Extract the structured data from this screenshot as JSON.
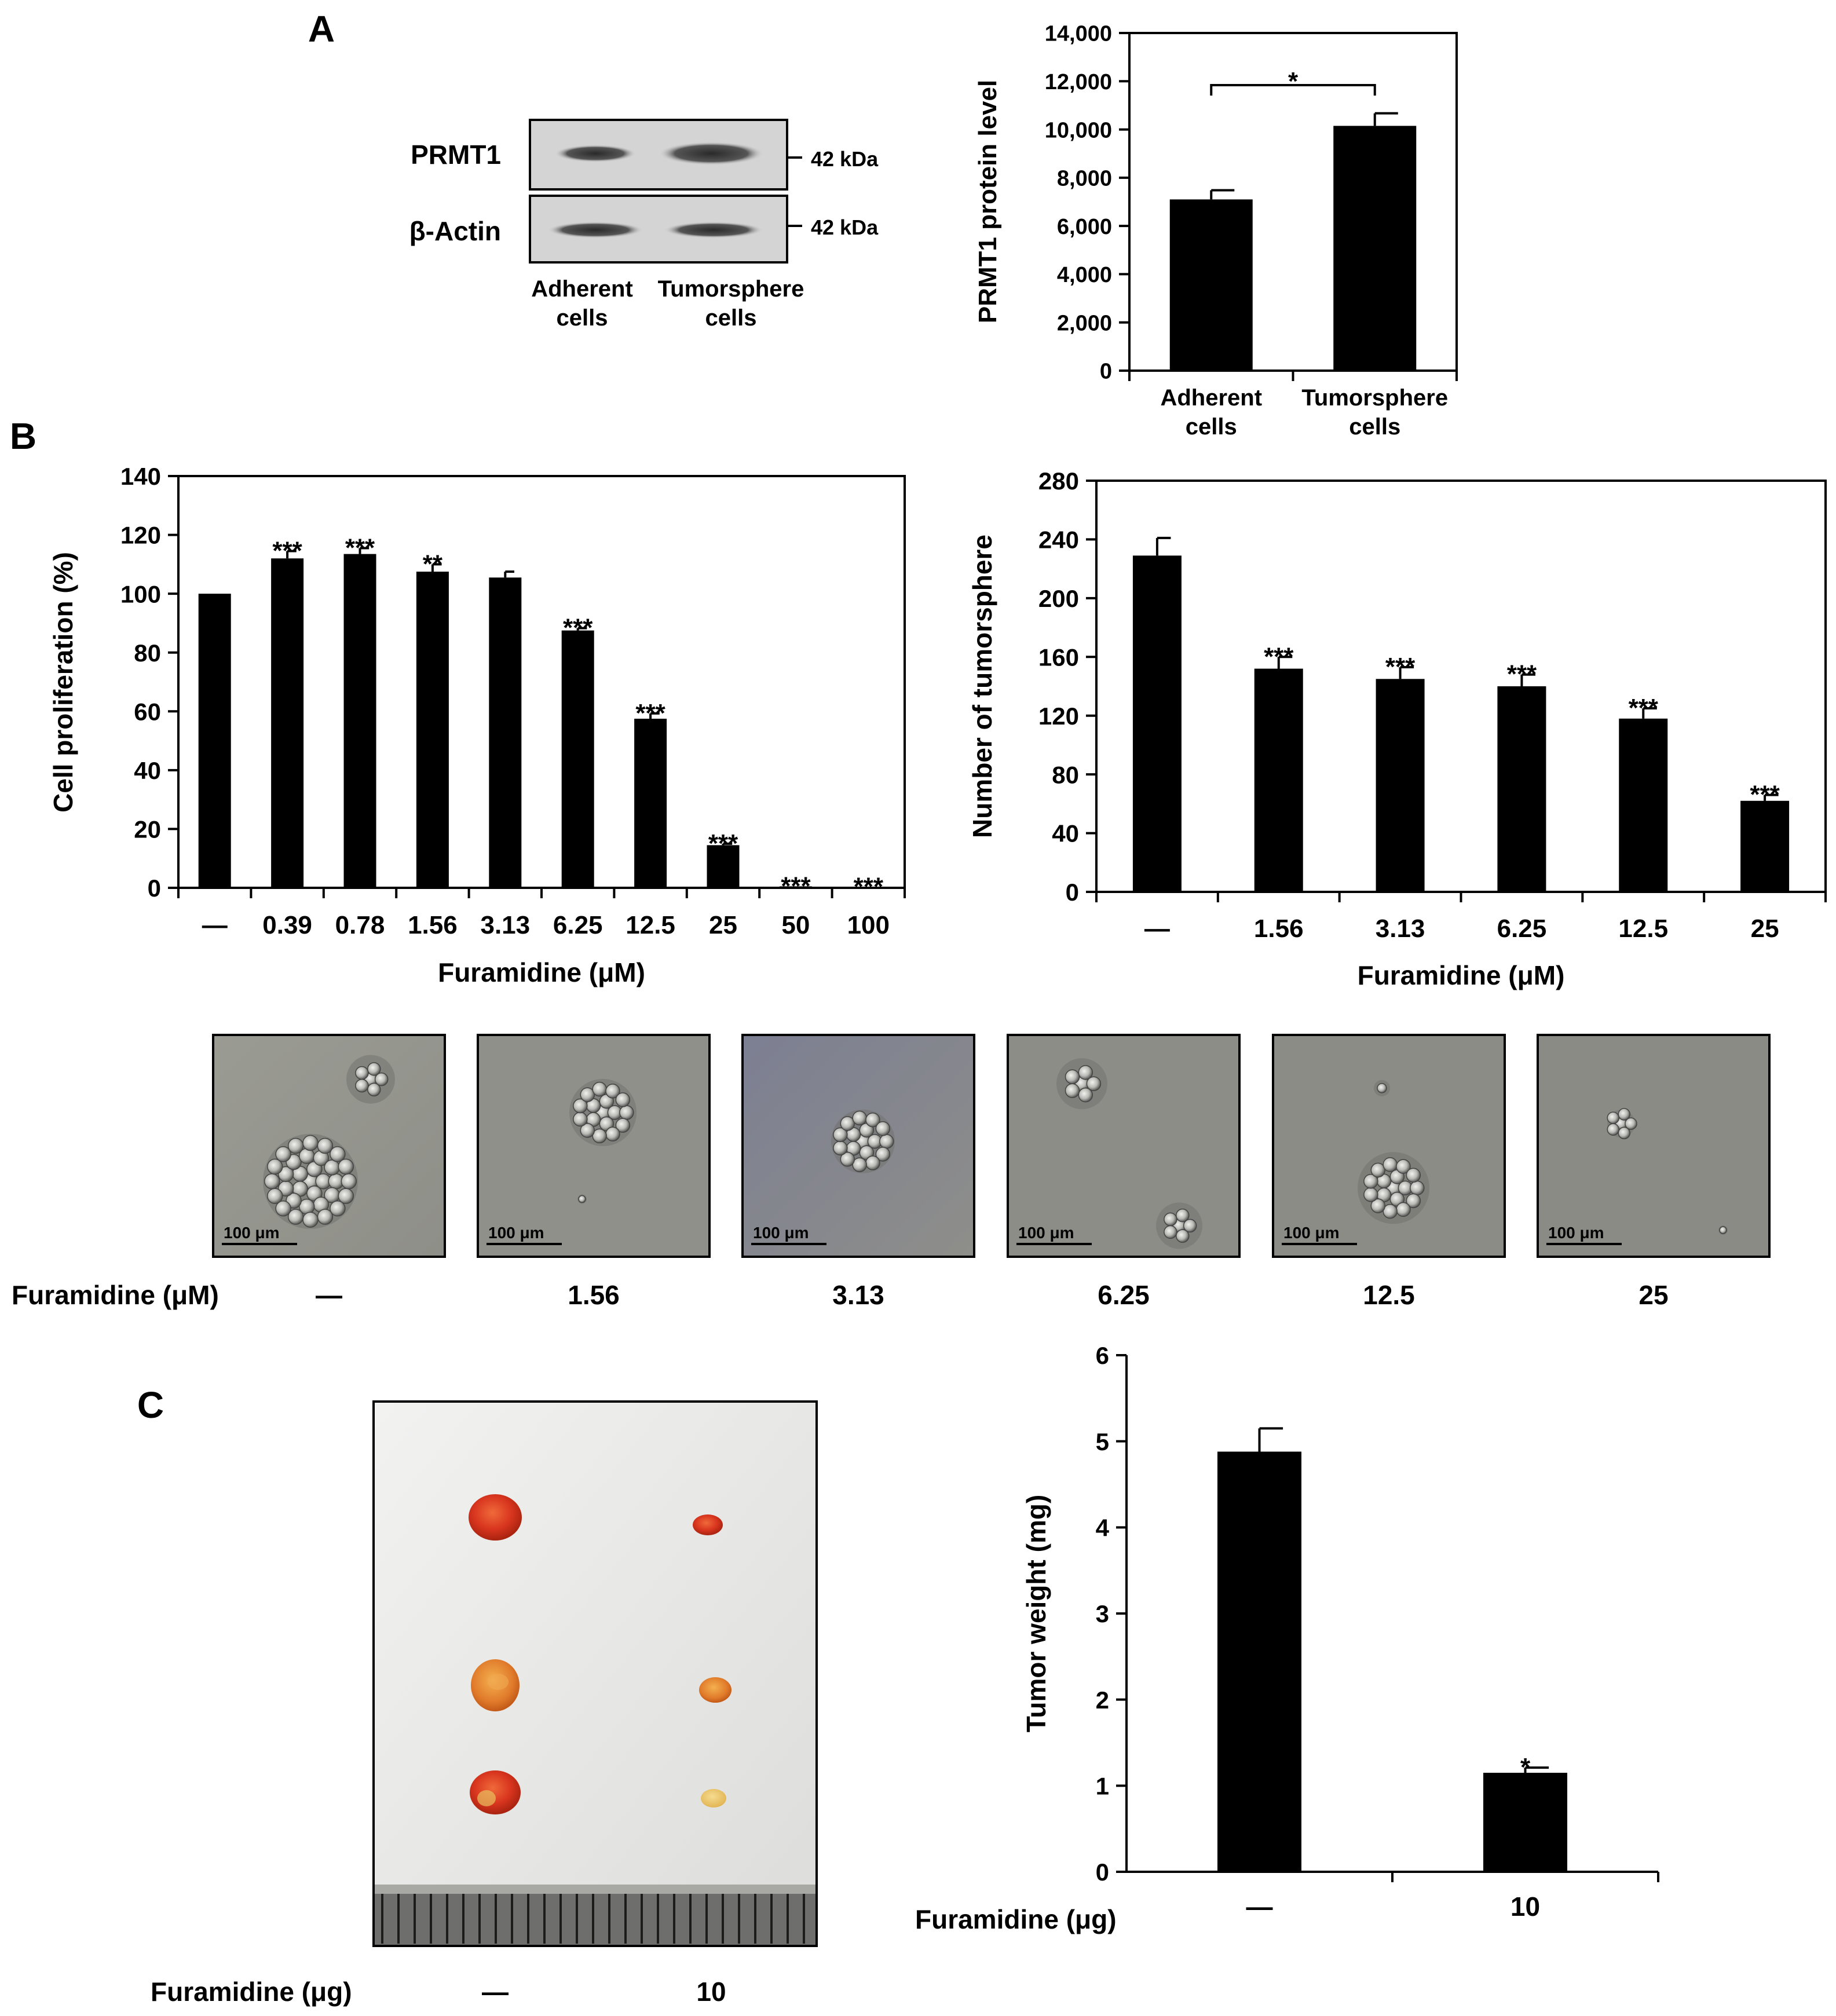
{
  "panels": {
    "A": {
      "letter": "A",
      "blot": {
        "bands": [
          {
            "label": "PRMT1",
            "size": "42 kDa"
          },
          {
            "label": "β-Actin",
            "size": "42 kDa"
          }
        ],
        "lanes": [
          {
            "line1": "Adherent",
            "line2": "cells"
          },
          {
            "line1": "Tumorsphere",
            "line2": "cells"
          }
        ]
      }
    },
    "B": {
      "letter": "B",
      "images": {
        "axis_label": "Furamidine (μM)",
        "scalebar": "100 μm",
        "labels": [
          "—",
          "1.56",
          "3.13",
          "6.25",
          "12.5",
          "25"
        ]
      }
    },
    "C": {
      "letter": "C",
      "photo": {
        "axis_label": "Furamidine (μg)",
        "labels": [
          "—",
          "10"
        ]
      }
    }
  },
  "chart_data": [
    {
      "id": "prmt1",
      "type": "bar",
      "categories": [
        [
          "Adherent",
          "cells"
        ],
        [
          "Tumorsphere",
          "cells"
        ]
      ],
      "values": [
        7100,
        10150
      ],
      "errors": [
        380,
        520
      ],
      "ylabel": "PRMT1 protein level",
      "xlabel": "",
      "ylim": [
        0,
        14000
      ],
      "yticks": [
        "0",
        "2,000",
        "4,000",
        "6,000",
        "8,000",
        "10,000",
        "12,000",
        "14,000"
      ],
      "significance": [
        {
          "from": 0,
          "to": 1,
          "label": "*"
        }
      ]
    },
    {
      "id": "proliferation",
      "type": "bar",
      "categories": [
        "—",
        "0.39",
        "0.78",
        "1.56",
        "3.13",
        "6.25",
        "12.5",
        "25",
        "50",
        "100"
      ],
      "values": [
        100,
        112,
        113.5,
        107.5,
        105.5,
        87.5,
        57.5,
        14.5,
        0.5,
        0.3
      ],
      "errors": [
        0,
        2.5,
        2,
        2.5,
        2,
        0.8,
        1.8,
        0.5,
        0,
        0
      ],
      "annotations": [
        "",
        "***",
        "***",
        "**",
        "",
        "***",
        "***",
        "***",
        "***",
        "***"
      ],
      "ylabel": "Cell proliferation (%)",
      "xlabel": "Furamidine (μM)",
      "ylim": [
        0,
        140
      ],
      "yticks": [
        "0",
        "20",
        "40",
        "60",
        "80",
        "100",
        "120",
        "140"
      ]
    },
    {
      "id": "tumorsphere",
      "type": "bar",
      "categories": [
        "—",
        "1.56",
        "3.13",
        "6.25",
        "12.5",
        "25"
      ],
      "values": [
        229,
        152,
        145,
        140,
        118,
        62
      ],
      "errors": [
        12,
        8,
        8,
        8,
        7,
        4
      ],
      "annotations": [
        "",
        "***",
        "***",
        "***",
        "***",
        "***"
      ],
      "ylabel": "Number of tumorsphere",
      "xlabel": "Furamidine (μM)",
      "ylim": [
        0,
        280
      ],
      "yticks": [
        "0",
        "40",
        "80",
        "120",
        "160",
        "200",
        "240",
        "280"
      ]
    },
    {
      "id": "tumorweight",
      "type": "bar",
      "categories": [
        "—",
        "10"
      ],
      "values": [
        4.88,
        1.15
      ],
      "errors": [
        0.27,
        0.06
      ],
      "annotations": [
        "",
        "*"
      ],
      "ylabel": "Tumor weight (mg)",
      "xlabel": "Furamidine (μg)",
      "ylim": [
        0,
        6
      ],
      "yticks": [
        "0",
        "1",
        "2",
        "3",
        "4",
        "5",
        "6"
      ]
    }
  ]
}
